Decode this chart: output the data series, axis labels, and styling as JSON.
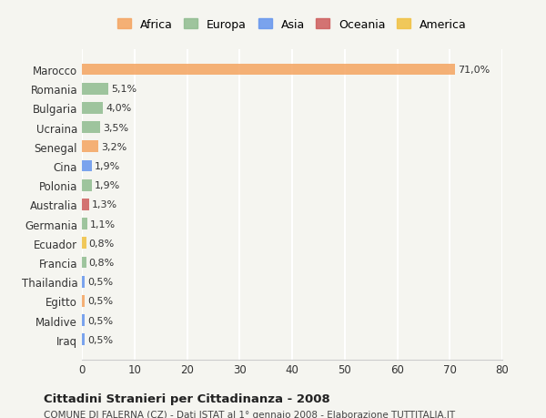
{
  "categories": [
    "Marocco",
    "Romania",
    "Bulgaria",
    "Ucraina",
    "Senegal",
    "Cina",
    "Polonia",
    "Australia",
    "Germania",
    "Ecuador",
    "Francia",
    "Thailandia",
    "Egitto",
    "Maldive",
    "Iraq"
  ],
  "values": [
    71.0,
    5.1,
    4.0,
    3.5,
    3.2,
    1.9,
    1.9,
    1.3,
    1.1,
    0.8,
    0.8,
    0.5,
    0.5,
    0.5,
    0.5
  ],
  "labels": [
    "71,0%",
    "5,1%",
    "4,0%",
    "3,5%",
    "3,2%",
    "1,9%",
    "1,9%",
    "1,3%",
    "1,1%",
    "0,8%",
    "0,8%",
    "0,5%",
    "0,5%",
    "0,5%",
    "0,5%"
  ],
  "colors": [
    "#F4A460",
    "#8FBC8F",
    "#8FBC8F",
    "#8FBC8F",
    "#F4A460",
    "#6495ED",
    "#8FBC8F",
    "#CD5C5C",
    "#8FBC8F",
    "#F0C040",
    "#8FBC8F",
    "#6495ED",
    "#F4A460",
    "#6495ED",
    "#6495ED"
  ],
  "continent": [
    "Africa",
    "Europa",
    "Europa",
    "Europa",
    "Africa",
    "Asia",
    "Europa",
    "Oceania",
    "Europa",
    "America",
    "Europa",
    "Asia",
    "Africa",
    "Asia",
    "Asia"
  ],
  "legend_labels": [
    "Africa",
    "Europa",
    "Asia",
    "Oceania",
    "America"
  ],
  "legend_colors": [
    "#F4A460",
    "#8FBC8F",
    "#6495ED",
    "#CD5C5C",
    "#F0C040"
  ],
  "title1": "Cittadini Stranieri per Cittadinanza - 2008",
  "title2": "COMUNE DI FALERNA (CZ) - Dati ISTAT al 1° gennaio 2008 - Elaborazione TUTTITALIA.IT",
  "xlim": [
    0,
    80
  ],
  "xticks": [
    0,
    10,
    20,
    30,
    40,
    50,
    60,
    70,
    80
  ],
  "background_color": "#f5f5f0",
  "grid_color": "#ffffff"
}
